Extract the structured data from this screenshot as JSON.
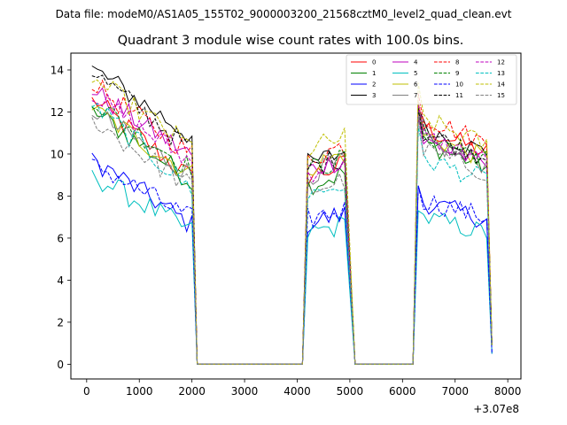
{
  "chart_data": {
    "type": "line",
    "suptitle": "Data file: modeM0/AS1A05_155T02_9000003200_21568cztM0_level2_quad_clean.evt",
    "title": "Quadrant 3 module wise count rates with 100.0s bins.",
    "xlabel": "",
    "ylabel": "",
    "x_offset_label": "+3.07e8",
    "xlim": [
      -300,
      8250
    ],
    "ylim": [
      -0.7,
      14.8
    ],
    "x_ticks": [
      0,
      1000,
      2000,
      3000,
      4000,
      5000,
      6000,
      7000,
      8000
    ],
    "x_tick_labels": [
      "0",
      "1000",
      "2000",
      "3000",
      "4000",
      "5000",
      "6000",
      "7000",
      "8000"
    ],
    "y_ticks": [
      0,
      2,
      4,
      6,
      8,
      10,
      12,
      14
    ],
    "y_tick_labels": [
      "0",
      "2",
      "4",
      "6",
      "8",
      "10",
      "12",
      "14"
    ],
    "grid": false,
    "legend_position": "top-right",
    "legend_columns": 4,
    "segments": [
      {
        "start": 100,
        "end": 2000,
        "step": 100
      },
      {
        "start": 4200,
        "end": 4900,
        "step": 100
      },
      {
        "start": 6300,
        "end": 7600,
        "step": 100
      }
    ],
    "gap_start": [
      2100,
      5100
    ],
    "gap_end": [
      4100,
      6200
    ],
    "gap_value": 0,
    "final_point": {
      "x": 7700
    },
    "series": [
      {
        "name": "0",
        "color": "#ff0000",
        "dash": false,
        "start": 12.6,
        "end": 8.8,
        "seg2": 9.3,
        "seg3": 10.8,
        "last": 0.9
      },
      {
        "name": "1",
        "color": "#008000",
        "dash": false,
        "start": 12.1,
        "end": 8.7,
        "seg2": 8.9,
        "seg3": 10.1,
        "last": 0.9
      },
      {
        "name": "2",
        "color": "#0000ff",
        "dash": false,
        "start": 9.8,
        "end": 6.6,
        "seg2": 7.0,
        "seg3": 7.4,
        "last": 0.5
      },
      {
        "name": "3",
        "color": "#000000",
        "dash": false,
        "start": 14.1,
        "end": 10.8,
        "seg2": 9.9,
        "seg3": 10.8,
        "last": 0.9
      },
      {
        "name": "4",
        "color": "#bf00bf",
        "dash": false,
        "start": 13.0,
        "end": 9.9,
        "seg2": 9.6,
        "seg3": 10.2,
        "last": 0.9
      },
      {
        "name": "5",
        "color": "#00bfbf",
        "dash": false,
        "start": 9.0,
        "end": 6.3,
        "seg2": 6.5,
        "seg3": 6.7,
        "last": 0.5
      },
      {
        "name": "6",
        "color": "#bfbf00",
        "dash": false,
        "start": 12.2,
        "end": 9.0,
        "seg2": 9.8,
        "seg3": 10.5,
        "last": 0.9
      },
      {
        "name": "7",
        "color": "#808080",
        "dash": false,
        "start": 12.0,
        "end": 9.0,
        "seg2": 9.4,
        "seg3": 10.2,
        "last": 0.9
      },
      {
        "name": "8",
        "color": "#ff0000",
        "dash": true,
        "start": 13.3,
        "end": 10.0,
        "seg2": 10.2,
        "seg3": 11.3,
        "last": 0.9
      },
      {
        "name": "9",
        "color": "#008000",
        "dash": true,
        "start": 12.5,
        "end": 9.3,
        "seg2": 9.6,
        "seg3": 10.5,
        "last": 0.9
      },
      {
        "name": "10",
        "color": "#0000ff",
        "dash": true,
        "start": 9.6,
        "end": 6.9,
        "seg2": 7.2,
        "seg3": 7.5,
        "last": 0.5
      },
      {
        "name": "11",
        "color": "#000000",
        "dash": true,
        "start": 13.9,
        "end": 10.2,
        "seg2": 9.7,
        "seg3": 10.6,
        "last": 0.9
      },
      {
        "name": "12",
        "color": "#bf00bf",
        "dash": true,
        "start": 12.8,
        "end": 9.6,
        "seg2": 9.5,
        "seg3": 10.4,
        "last": 0.9
      },
      {
        "name": "13",
        "color": "#00bfbf",
        "dash": true,
        "start": 12.4,
        "end": 8.3,
        "seg2": 8.4,
        "seg3": 9.4,
        "last": 0.9
      },
      {
        "name": "14",
        "color": "#bfbf00",
        "dash": true,
        "start": 13.6,
        "end": 10.3,
        "seg2": 10.6,
        "seg3": 11.2,
        "last": 0.9
      },
      {
        "name": "15",
        "color": "#808080",
        "dash": true,
        "start": 11.6,
        "end": 8.4,
        "seg2": 8.6,
        "seg3": 9.8,
        "last": 0.9
      }
    ]
  }
}
